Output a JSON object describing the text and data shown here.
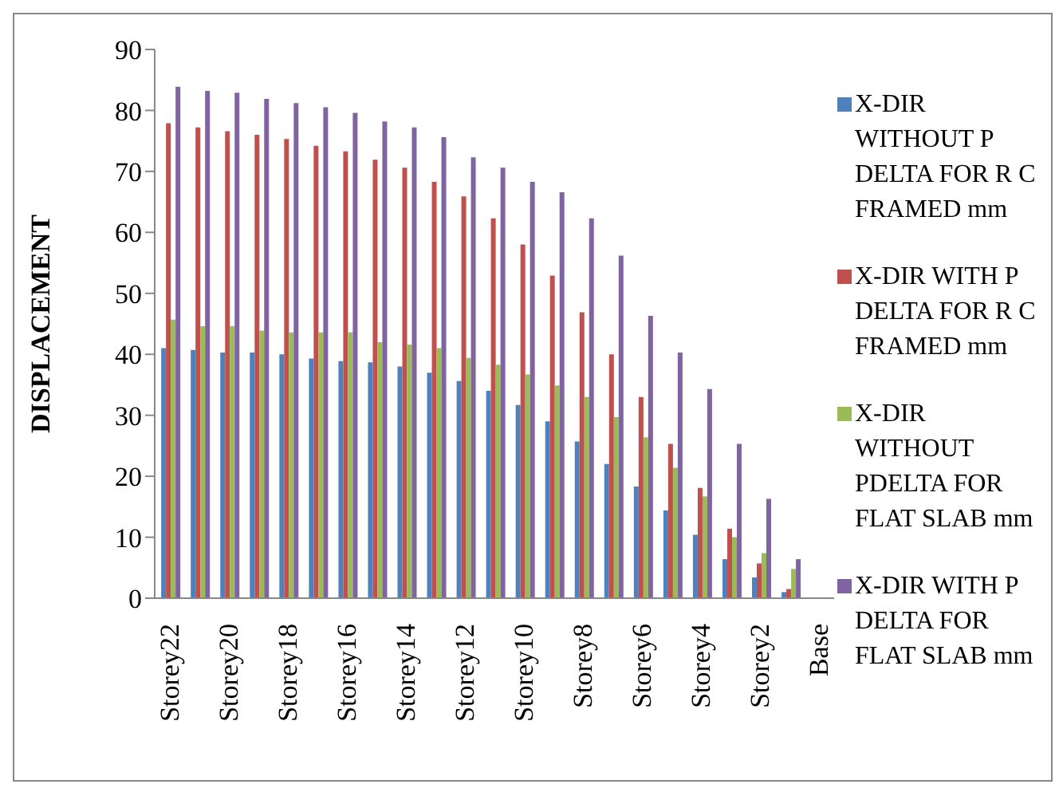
{
  "chart_data": {
    "type": "bar",
    "ylabel": "DISPLACEMENT",
    "categories": [
      "Storey22",
      null,
      "Storey20",
      null,
      "Storey18",
      null,
      "Storey16",
      null,
      "Storey14",
      null,
      "Storey12",
      null,
      "Storey10",
      null,
      "Storey8",
      null,
      "Storey6",
      null,
      "Storey4",
      null,
      "Storey2",
      null,
      "Base"
    ],
    "series": [
      {
        "name": "X-DIR WITHOUT P DELTA FOR R C FRAMED mm",
        "color": "#4f81bd",
        "values": [
          41.0,
          40.7,
          40.3,
          40.3,
          40.0,
          39.3,
          38.9,
          38.7,
          38.0,
          37.0,
          35.6,
          34.0,
          31.7,
          29.0,
          25.7,
          22.0,
          18.3,
          14.4,
          10.4,
          6.4,
          3.4,
          1.0,
          0
        ]
      },
      {
        "name": "X-DIR WITH P DELTA FOR R C FRAMED  mm",
        "color": "#c0504d",
        "values": [
          77.9,
          77.2,
          76.6,
          76.0,
          75.3,
          74.2,
          73.3,
          71.9,
          70.6,
          68.3,
          65.9,
          62.3,
          58.0,
          52.9,
          46.9,
          40.0,
          33.0,
          25.3,
          18.1,
          11.4,
          5.7,
          1.5,
          0
        ]
      },
      {
        "name": "X-DIR WITHOUT PDELTA FOR FLAT SLAB mm",
        "color": "#9bbb59",
        "values": [
          45.7,
          44.6,
          44.6,
          43.9,
          43.6,
          43.6,
          43.6,
          42.0,
          41.6,
          41.0,
          39.4,
          38.3,
          36.7,
          34.9,
          33.0,
          29.7,
          26.4,
          21.4,
          16.7,
          10.0,
          7.4,
          4.8,
          0
        ]
      },
      {
        "name": "X-DIR WITH P DELTA FOR FLAT SLAB mm",
        "color": "#8064a2",
        "values": [
          83.9,
          83.2,
          82.9,
          81.9,
          81.2,
          80.5,
          79.6,
          78.2,
          77.2,
          75.6,
          72.3,
          70.6,
          68.3,
          66.6,
          62.3,
          56.2,
          46.3,
          40.3,
          34.3,
          25.3,
          16.3,
          6.4,
          0
        ]
      }
    ],
    "ylim": [
      0,
      90
    ],
    "yticks": [
      0,
      10,
      20,
      30,
      40,
      50,
      60,
      70,
      80,
      90
    ],
    "legend": "right"
  }
}
